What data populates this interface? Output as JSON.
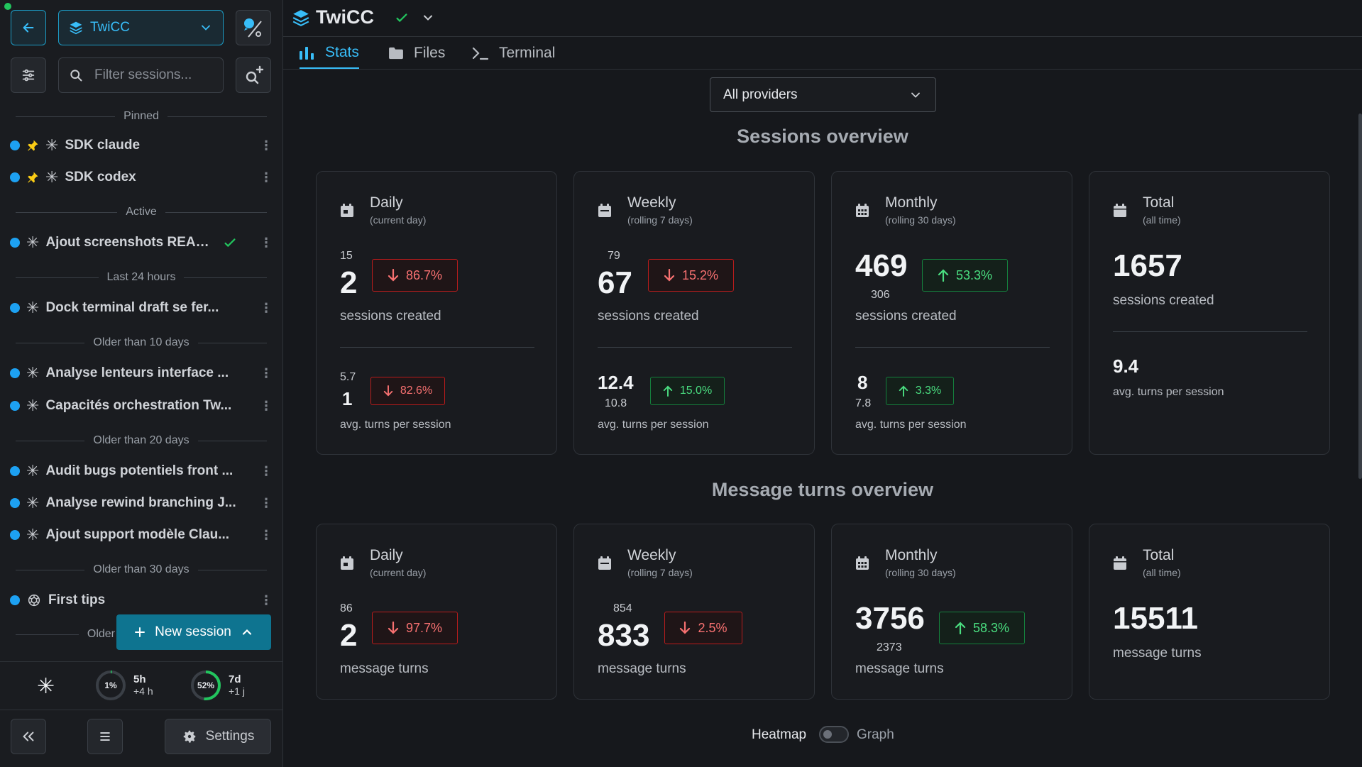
{
  "sidebar": {
    "project": "TwiCC",
    "filter_placeholder": "Filter sessions...",
    "groups": {
      "pinned": "Pinned",
      "active": "Active",
      "last24": "Last 24 hours",
      "older10": "Older than 10 days",
      "older20": "Older than 20 days",
      "older30": "Older than 30 days",
      "older_cut": "Older"
    },
    "sessions": [
      {
        "title": "SDK claude"
      },
      {
        "title": "SDK codex"
      },
      {
        "title": "Ajout screenshots READ..."
      },
      {
        "title": "Dock terminal draft se fer..."
      },
      {
        "title": "Analyse lenteurs interface ..."
      },
      {
        "title": "Capacités orchestration Tw..."
      },
      {
        "title": "Audit bugs potentiels front ..."
      },
      {
        "title": "Analyse rewind branching J..."
      },
      {
        "title": "Ajout support modèle Clau..."
      },
      {
        "title": "First tips"
      }
    ],
    "new_session_label": "New session",
    "usage": {
      "five_hour": {
        "percent": 1,
        "percent_label": "1%",
        "label": "5h",
        "reset": "+4 h"
      },
      "seven_day": {
        "percent": 52,
        "percent_label": "52%",
        "label": "7d",
        "reset": "+1 j"
      }
    },
    "settings_label": "Settings"
  },
  "header": {
    "title": "TwiCC"
  },
  "tabs": [
    {
      "label": "Stats",
      "icon": "bar-chart-icon",
      "active": true
    },
    {
      "label": "Files",
      "icon": "folder-icon"
    },
    {
      "label": "Terminal",
      "icon": "terminal-icon"
    }
  ],
  "provider_filter": "All providers",
  "sessions_overview": {
    "title": "Sessions overview",
    "cards": {
      "daily": {
        "title": "Daily",
        "sub": "(current day)",
        "prev": "15",
        "value": "2",
        "caption": "sessions created",
        "change": "86.7%",
        "trend": "down",
        "turns_prev": "5.7",
        "turns_value": "1",
        "turns_caption": "avg. turns per session",
        "turns_change": "82.6%",
        "turns_trend": "down"
      },
      "weekly": {
        "title": "Weekly",
        "sub": "(rolling 7 days)",
        "prev": "79",
        "value": "67",
        "caption": "sessions created",
        "change": "15.2%",
        "trend": "down",
        "turns_prev": "10.8",
        "turns_value": "12.4",
        "turns_caption": "avg. turns per session",
        "turns_change": "15.0%",
        "turns_trend": "up"
      },
      "monthly": {
        "title": "Monthly",
        "sub": "(rolling 30 days)",
        "prev": "306",
        "value": "469",
        "caption": "sessions created",
        "change": "53.3%",
        "trend": "up",
        "turns_prev": "7.8",
        "turns_value": "8",
        "turns_caption": "avg. turns per session",
        "turns_change": "3.3%",
        "turns_trend": "up"
      },
      "total": {
        "title": "Total",
        "sub": "(all time)",
        "value": "1657",
        "caption": "sessions created",
        "turns_value": "9.4",
        "turns_caption": "avg. turns per session"
      }
    }
  },
  "turns_overview": {
    "title": "Message turns overview",
    "cards": {
      "daily": {
        "title": "Daily",
        "sub": "(current day)",
        "prev": "86",
        "value": "2",
        "caption": "message turns",
        "change": "97.7%",
        "trend": "down"
      },
      "weekly": {
        "title": "Weekly",
        "sub": "(rolling 7 days)",
        "prev": "854",
        "value": "833",
        "caption": "message turns",
        "change": "2.5%",
        "trend": "down"
      },
      "monthly": {
        "title": "Monthly",
        "sub": "(rolling 30 days)",
        "prev": "2373",
        "value": "3756",
        "caption": "message turns",
        "change": "58.3%",
        "trend": "up"
      },
      "total": {
        "title": "Total",
        "sub": "(all time)",
        "value": "15511",
        "caption": "message turns"
      }
    }
  },
  "view_toggle": {
    "left": "Heatmap",
    "right": "Graph",
    "selected": "Heatmap"
  },
  "colors": {
    "accent": "#38bdf8",
    "up": "#4ade80",
    "down": "#f87171",
    "new_session": "#0e7490"
  }
}
